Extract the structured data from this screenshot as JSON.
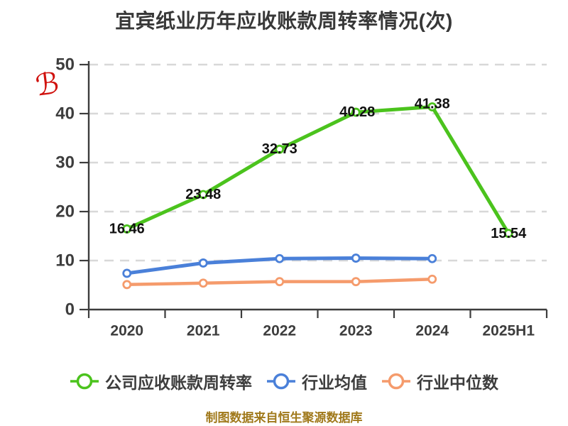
{
  "title": "宜宾纸业历年应收账款周转率情况(次)",
  "watermark": {
    "glyph": "ℬ",
    "color": "#d0120e"
  },
  "footer": {
    "text": "制图数据来自恒生聚源数据库",
    "color": "#a0791b"
  },
  "colors": {
    "axis": "#3d3d3d",
    "grid": "#d8d8d8",
    "data_label": "#111111",
    "company_series": "#4bc31d",
    "industry_mean_series": "#4a80d9",
    "industry_median_series": "#f59b6c"
  },
  "chart_data": {
    "type": "line",
    "title": "宜宾纸业历年应收账款周转率情况(次)",
    "categories": [
      "2020",
      "2021",
      "2022",
      "2023",
      "2024",
      "2025H1"
    ],
    "series": [
      {
        "name": "公司应收账款周转率",
        "color": "#4bc31d",
        "values": [
          16.46,
          23.48,
          32.73,
          40.28,
          41.38,
          15.54
        ],
        "labels": [
          "16.46",
          "23.48",
          "32.73",
          "40.28",
          "41.38",
          "15.54"
        ],
        "show_labels": true
      },
      {
        "name": "行业均值",
        "color": "#4a80d9",
        "values": [
          7.4,
          9.5,
          10.4,
          10.5,
          10.4
        ],
        "show_labels": false
      },
      {
        "name": "行业中位数",
        "color": "#f59b6c",
        "values": [
          5.1,
          5.4,
          5.7,
          5.7,
          6.2
        ],
        "show_labels": false
      }
    ],
    "xlabel": "",
    "ylabel": "",
    "ylim": [
      0,
      50
    ],
    "yticks": [
      0,
      10,
      20,
      30,
      40,
      50
    ],
    "grid": "horizontal-dashed",
    "legend_position": "bottom"
  },
  "legend": {
    "items": [
      {
        "label": "公司应收账款周转率",
        "color": "#4bc31d"
      },
      {
        "label": "行业均值",
        "color": "#4a80d9"
      },
      {
        "label": "行业中位数",
        "color": "#f59b6c"
      }
    ]
  }
}
